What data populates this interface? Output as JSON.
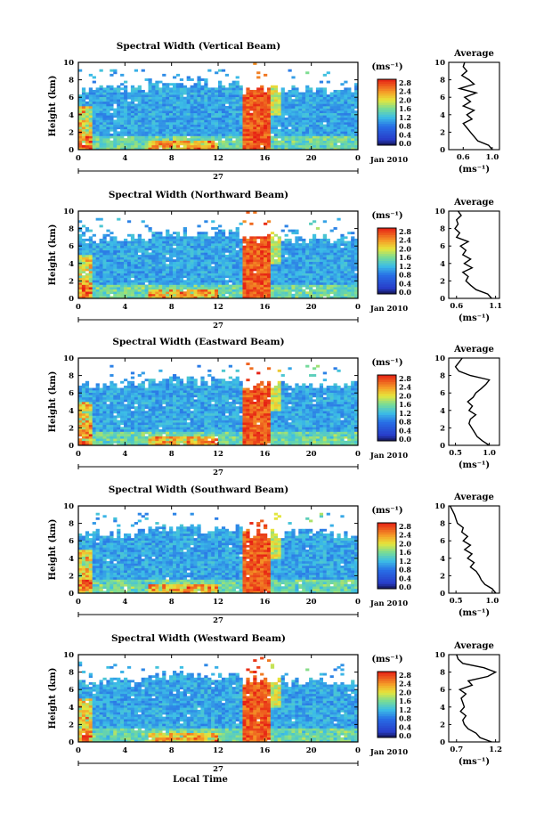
{
  "chart_data": [
    {
      "type": "heatmap",
      "title": "Spectral Width (Vertical Beam)",
      "ylabel": "Height (km)",
      "xlabel": "",
      "x_ticks": [
        "0",
        "4",
        "8",
        "12",
        "16",
        "20",
        "0"
      ],
      "y_ticks": [
        "0",
        "2",
        "4",
        "6",
        "8",
        "10"
      ],
      "xlim": [
        0,
        24
      ],
      "ylim": [
        0,
        10
      ],
      "date_center": "27",
      "date_right": "Jan 2010",
      "colorbar": {
        "unit": "(ms⁻¹)",
        "ticks": [
          "2.8",
          "2.4",
          "2.0",
          "1.6",
          "1.2",
          "0.8",
          "0.4",
          "0.0"
        ],
        "range": [
          0,
          2.8
        ]
      },
      "profile": {
        "title": "Average",
        "xlabel": "(ms⁻¹)",
        "x_ticks": [
          "0.6",
          "1.0"
        ],
        "xlim": [
          0.4,
          1.1
        ],
        "heights": [
          0,
          0.5,
          1,
          1.5,
          2,
          2.5,
          3,
          3.5,
          4,
          4.5,
          5,
          5.5,
          6,
          6.5,
          7,
          7.5,
          8,
          8.5,
          9,
          9.5,
          10
        ],
        "values": [
          1.0,
          0.95,
          0.8,
          0.75,
          0.7,
          0.65,
          0.6,
          0.72,
          0.65,
          0.75,
          0.6,
          0.7,
          0.62,
          0.78,
          0.55,
          0.75,
          0.68,
          0.58,
          0.65,
          0.6,
          0.62
        ]
      }
    },
    {
      "type": "heatmap",
      "title": "Spectral Width (Northward Beam)",
      "ylabel": "Height (km)",
      "xlabel": "",
      "x_ticks": [
        "0",
        "4",
        "8",
        "12",
        "16",
        "20",
        "0"
      ],
      "y_ticks": [
        "0",
        "2",
        "4",
        "6",
        "8",
        "10"
      ],
      "xlim": [
        0,
        24
      ],
      "ylim": [
        0,
        10
      ],
      "date_center": "27",
      "date_right": "Jan 2010",
      "colorbar": {
        "unit": "(ms⁻¹)",
        "ticks": [
          "2.8",
          "2.4",
          "2.0",
          "1.6",
          "1.2",
          "0.8",
          "0.4",
          "0.0"
        ],
        "range": [
          0,
          2.8
        ]
      },
      "profile": {
        "title": "Average",
        "xlabel": "(ms⁻¹)",
        "x_ticks": [
          "0.6",
          "1.1"
        ],
        "xlim": [
          0.5,
          1.15
        ],
        "heights": [
          0,
          0.5,
          1,
          1.5,
          2,
          2.5,
          3,
          3.5,
          4,
          4.5,
          5,
          5.5,
          6,
          6.5,
          7,
          7.5,
          8,
          8.5,
          9,
          9.5,
          10
        ],
        "values": [
          1.05,
          1.0,
          0.85,
          0.78,
          0.72,
          0.75,
          0.68,
          0.8,
          0.7,
          0.78,
          0.68,
          0.72,
          0.65,
          0.75,
          0.6,
          0.64,
          0.58,
          0.62,
          0.6,
          0.66,
          0.62
        ]
      }
    },
    {
      "type": "heatmap",
      "title": "Spectral Width (Eastward Beam)",
      "ylabel": "Height (km)",
      "xlabel": "",
      "x_ticks": [
        "0",
        "4",
        "8",
        "12",
        "16",
        "20",
        "0"
      ],
      "y_ticks": [
        "0",
        "2",
        "4",
        "6",
        "8",
        "10"
      ],
      "xlim": [
        0,
        24
      ],
      "ylim": [
        0,
        10
      ],
      "date_center": "27",
      "date_right": "Jan 2010",
      "colorbar": {
        "unit": "(ms⁻¹)",
        "ticks": [
          "2.8",
          "2.4",
          "2.0",
          "1.6",
          "1.2",
          "0.8",
          "0.4",
          "0.0"
        ],
        "range": [
          0,
          2.8
        ]
      },
      "profile": {
        "title": "Average",
        "xlabel": "(ms⁻¹)",
        "x_ticks": [
          "0.5",
          "1.0"
        ],
        "xlim": [
          0.4,
          1.15
        ],
        "heights": [
          0,
          0.5,
          1,
          1.5,
          2,
          2.5,
          3,
          3.5,
          4,
          4.5,
          5,
          5.5,
          6,
          6.5,
          7,
          7.5,
          8,
          8.5,
          9,
          9.5,
          10
        ],
        "values": [
          1.0,
          0.9,
          0.82,
          0.78,
          0.74,
          0.7,
          0.72,
          0.8,
          0.7,
          0.75,
          0.68,
          0.76,
          0.8,
          0.88,
          0.95,
          1.0,
          0.72,
          0.55,
          0.5,
          0.55,
          0.6
        ]
      }
    },
    {
      "type": "heatmap",
      "title": "Spectral Width (Southward Beam)",
      "ylabel": "Height (km)",
      "xlabel": "",
      "x_ticks": [
        "0",
        "4",
        "8",
        "12",
        "16",
        "20",
        "0"
      ],
      "y_ticks": [
        "0",
        "2",
        "4",
        "6",
        "8",
        "10"
      ],
      "xlim": [
        0,
        24
      ],
      "ylim": [
        0,
        10
      ],
      "date_center": "27",
      "date_right": "Jan 2010",
      "colorbar": {
        "unit": "(ms⁻¹)",
        "ticks": [
          "2.8",
          "2.4",
          "2.0",
          "1.6",
          "1.2",
          "0.8",
          "0.4",
          "0.0"
        ],
        "range": [
          0,
          2.8
        ]
      },
      "profile": {
        "title": "Average",
        "xlabel": "(ms⁻¹)",
        "x_ticks": [
          "0.5",
          "1.0"
        ],
        "xlim": [
          0.4,
          1.1
        ],
        "heights": [
          0,
          0.5,
          1,
          1.5,
          2,
          2.5,
          3,
          3.5,
          4,
          4.5,
          5,
          5.5,
          6,
          6.5,
          7,
          7.5,
          8,
          8.5,
          9,
          9.5,
          10
        ],
        "values": [
          1.05,
          1.0,
          0.9,
          0.85,
          0.82,
          0.78,
          0.7,
          0.75,
          0.66,
          0.72,
          0.62,
          0.7,
          0.6,
          0.66,
          0.58,
          0.6,
          0.52,
          0.5,
          0.48,
          0.45,
          0.42
        ]
      }
    },
    {
      "type": "heatmap",
      "title": "Spectral Width (Westward Beam)",
      "ylabel": "Height (km)",
      "xlabel": "Local Time",
      "x_ticks": [
        "0",
        "4",
        "8",
        "12",
        "16",
        "20",
        "0"
      ],
      "y_ticks": [
        "0",
        "2",
        "4",
        "6",
        "8",
        "10"
      ],
      "xlim": [
        0,
        24
      ],
      "ylim": [
        0,
        10
      ],
      "date_center": "27",
      "date_right": "Jan 2010",
      "colorbar": {
        "unit": "(ms⁻¹)",
        "ticks": [
          "2.8",
          "2.4",
          "2.0",
          "1.6",
          "1.2",
          "0.8",
          "0.4",
          "0.0"
        ],
        "range": [
          0,
          2.8
        ]
      },
      "profile": {
        "title": "Average",
        "xlabel": "(ms⁻¹)",
        "x_ticks": [
          "0.7",
          "1.2"
        ],
        "xlim": [
          0.6,
          1.25
        ],
        "heights": [
          0,
          0.5,
          1,
          1.5,
          2,
          2.5,
          3,
          3.5,
          4,
          4.5,
          5,
          5.5,
          6,
          6.5,
          7,
          7.5,
          8,
          8.5,
          9,
          9.5,
          10
        ],
        "values": [
          1.15,
          1.0,
          0.95,
          0.85,
          0.8,
          0.78,
          0.82,
          0.75,
          0.8,
          0.78,
          0.76,
          0.82,
          0.74,
          0.9,
          0.85,
          1.1,
          1.2,
          1.05,
          0.78,
          0.72,
          0.7
        ]
      }
    }
  ]
}
